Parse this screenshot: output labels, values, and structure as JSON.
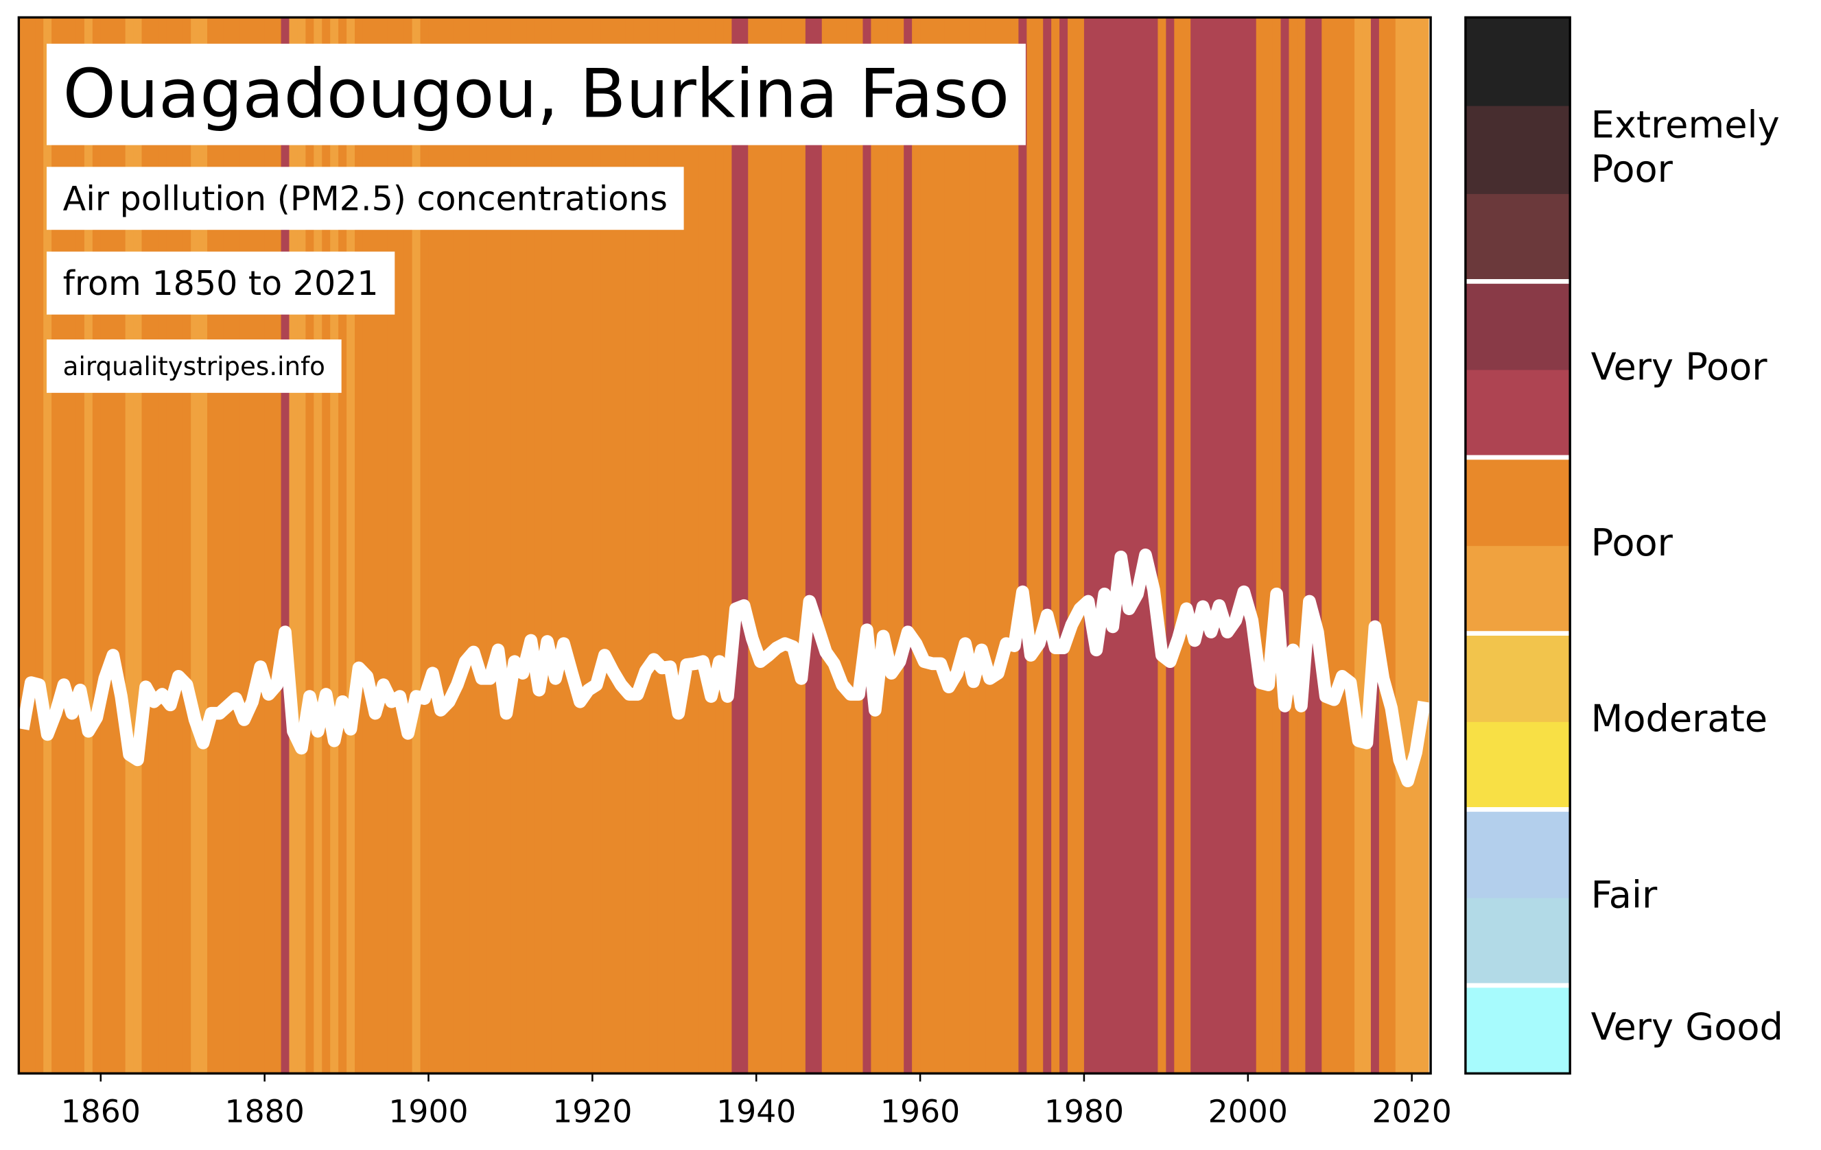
{
  "chart_data": {
    "type": "stripes",
    "title": "Ouagadougou, Burkina Faso",
    "subtitle": "Air pollution (PM2.5) concentrations",
    "period": "from 1850 to 2021",
    "source": "airqualitystripes.info",
    "x": [
      1850,
      1851,
      1852,
      1853,
      1854,
      1855,
      1856,
      1857,
      1858,
      1859,
      1860,
      1861,
      1862,
      1863,
      1864,
      1865,
      1866,
      1867,
      1868,
      1869,
      1870,
      1871,
      1872,
      1873,
      1874,
      1875,
      1876,
      1877,
      1878,
      1879,
      1880,
      1881,
      1882,
      1883,
      1884,
      1885,
      1886,
      1887,
      1888,
      1889,
      1890,
      1891,
      1892,
      1893,
      1894,
      1895,
      1896,
      1897,
      1898,
      1899,
      1900,
      1901,
      1902,
      1903,
      1904,
      1905,
      1906,
      1907,
      1908,
      1909,
      1910,
      1911,
      1912,
      1913,
      1914,
      1915,
      1916,
      1917,
      1918,
      1919,
      1920,
      1921,
      1922,
      1923,
      1924,
      1925,
      1926,
      1927,
      1928,
      1929,
      1930,
      1931,
      1932,
      1933,
      1934,
      1935,
      1936,
      1937,
      1938,
      1939,
      1940,
      1941,
      1942,
      1943,
      1944,
      1945,
      1946,
      1947,
      1948,
      1949,
      1950,
      1951,
      1952,
      1953,
      1954,
      1955,
      1956,
      1957,
      1958,
      1959,
      1960,
      1961,
      1962,
      1963,
      1964,
      1965,
      1966,
      1967,
      1968,
      1969,
      1970,
      1971,
      1972,
      1973,
      1974,
      1975,
      1976,
      1977,
      1978,
      1979,
      1980,
      1981,
      1982,
      1983,
      1984,
      1985,
      1986,
      1987,
      1988,
      1989,
      1990,
      1991,
      1992,
      1993,
      1994,
      1995,
      1996,
      1997,
      1998,
      1999,
      2000,
      2001,
      2002,
      2003,
      2004,
      2005,
      2006,
      2007,
      2008,
      2009,
      2010,
      2011,
      2012,
      2013,
      2014,
      2015,
      2016,
      2017,
      2018,
      2019,
      2020,
      2021
    ],
    "values": [
      32.6,
      37.0,
      36.8,
      32.1,
      34.1,
      36.8,
      34.1,
      36.3,
      32.4,
      33.7,
      37.4,
      39.6,
      35.7,
      30.2,
      29.7,
      36.6,
      35.2,
      35.9,
      34.9,
      37.6,
      36.8,
      33.5,
      31.3,
      34.1,
      34.1,
      34.8,
      35.5,
      33.5,
      35.2,
      38.5,
      35.9,
      36.8,
      41.8,
      32.4,
      30.8,
      35.7,
      32.4,
      35.9,
      31.5,
      35.2,
      32.6,
      38.4,
      37.6,
      34.1,
      36.8,
      35.2,
      35.7,
      32.2,
      35.7,
      35.5,
      37.9,
      34.4,
      35.2,
      36.8,
      39.0,
      39.9,
      37.4,
      37.4,
      40.1,
      34.1,
      39.0,
      37.9,
      41.0,
      36.3,
      40.9,
      37.4,
      40.7,
      37.9,
      35.2,
      36.3,
      36.8,
      39.6,
      38.1,
      36.8,
      35.9,
      35.9,
      38.1,
      39.2,
      38.4,
      38.5,
      34.1,
      38.7,
      38.8,
      39.0,
      35.7,
      39.0,
      35.7,
      44.0,
      44.3,
      41.2,
      39.0,
      39.6,
      40.3,
      40.7,
      40.4,
      37.4,
      44.7,
      42.3,
      39.9,
      38.8,
      36.8,
      35.9,
      35.9,
      42.0,
      34.4,
      41.4,
      37.9,
      39.0,
      41.8,
      40.7,
      39.0,
      38.8,
      38.8,
      36.6,
      37.9,
      40.7,
      37.1,
      40.1,
      37.4,
      37.9,
      40.7,
      40.5,
      45.6,
      39.6,
      40.7,
      43.4,
      40.3,
      40.3,
      42.5,
      44.0,
      44.7,
      40.1,
      45.4,
      42.3,
      48.9,
      44.0,
      45.4,
      49.1,
      45.8,
      39.6,
      39.0,
      41.2,
      44.0,
      41.0,
      44.2,
      41.8,
      44.3,
      41.8,
      42.9,
      45.6,
      42.9,
      37.0,
      36.8,
      45.4,
      34.8,
      40.1,
      34.8,
      44.7,
      41.8,
      35.7,
      35.4,
      37.6,
      37.0,
      31.5,
      31.3,
      42.3,
      37.4,
      34.6,
      29.7,
      27.7,
      30.4,
      35.2
    ],
    "stripe_colors": [
      "#e8892a",
      "#e8892a",
      "#e8892a",
      "#f0a23f",
      "#e8892a",
      "#e8892a",
      "#e8892a",
      "#e8892a",
      "#f0a23f",
      "#e8892a",
      "#e8892a",
      "#e8892a",
      "#e8892a",
      "#f0a23f",
      "#f0a23f",
      "#e8892a",
      "#e8892a",
      "#e8892a",
      "#e8892a",
      "#e8892a",
      "#e8892a",
      "#f0a23f",
      "#f0a23f",
      "#e8892a",
      "#e8892a",
      "#e8892a",
      "#e8892a",
      "#e8892a",
      "#e8892a",
      "#e8892a",
      "#e8892a",
      "#e8892a",
      "#ae4452",
      "#f0a23f",
      "#f0a23f",
      "#e8892a",
      "#f0a23f",
      "#e8892a",
      "#f0a23f",
      "#e8892a",
      "#f0a23f",
      "#e8892a",
      "#e8892a",
      "#e8892a",
      "#e8892a",
      "#e8892a",
      "#e8892a",
      "#e8892a",
      "#f0a23f",
      "#e8892a",
      "#e8892a",
      "#e8892a",
      "#e8892a",
      "#e8892a",
      "#e8892a",
      "#e8892a",
      "#e8892a",
      "#e8892a",
      "#e8892a",
      "#e8892a",
      "#e8892a",
      "#e8892a",
      "#e8892a",
      "#e8892a",
      "#e8892a",
      "#e8892a",
      "#e8892a",
      "#e8892a",
      "#e8892a",
      "#e8892a",
      "#e8892a",
      "#e8892a",
      "#e8892a",
      "#e8892a",
      "#e8892a",
      "#e8892a",
      "#e8892a",
      "#e8892a",
      "#e8892a",
      "#e8892a",
      "#e8892a",
      "#e8892a",
      "#e8892a",
      "#e8892a",
      "#e8892a",
      "#e8892a",
      "#e8892a",
      "#ae4452",
      "#ae4452",
      "#e8892a",
      "#e8892a",
      "#e8892a",
      "#e8892a",
      "#e8892a",
      "#e8892a",
      "#e8892a",
      "#ae4452",
      "#ae4452",
      "#e8892a",
      "#e8892a",
      "#e8892a",
      "#e8892a",
      "#e8892a",
      "#ae4452",
      "#e8892a",
      "#e8892a",
      "#e8892a",
      "#e8892a",
      "#ae4452",
      "#e8892a",
      "#e8892a",
      "#e8892a",
      "#e8892a",
      "#e8892a",
      "#e8892a",
      "#e8892a",
      "#e8892a",
      "#e8892a",
      "#e8892a",
      "#e8892a",
      "#e8892a",
      "#e8892a",
      "#ae4452",
      "#e8892a",
      "#e8892a",
      "#ae4452",
      "#e8892a",
      "#ae4452",
      "#e8892a",
      "#e8892a",
      "#ae4452",
      "#ae4452",
      "#ae4452",
      "#ae4452",
      "#ae4452",
      "#ae4452",
      "#ae4452",
      "#ae4452",
      "#ae4452",
      "#e8892a",
      "#ae4452",
      "#e8892a",
      "#e8892a",
      "#ae4452",
      "#ae4452",
      "#ae4452",
      "#ae4452",
      "#ae4452",
      "#ae4452",
      "#ae4452",
      "#ae4452",
      "#e8892a",
      "#e8892a",
      "#e8892a",
      "#ae4452",
      "#e8892a",
      "#e8892a",
      "#ae4452",
      "#ae4452",
      "#e8892a",
      "#e8892a",
      "#e8892a",
      "#e8892a",
      "#f0a23f",
      "#f0a23f",
      "#ae4452",
      "#e8892a",
      "#e8892a",
      "#f0a23f",
      "#f0a23f",
      "#f0a23f",
      "#f0a23f"
    ],
    "line_color": "#ffffff",
    "xlim": [
      1850,
      2022.3
    ],
    "ylim": [
      0,
      100
    ],
    "xticks": [
      1860,
      1880,
      1900,
      1920,
      1940,
      1960,
      1980,
      2000,
      2020
    ],
    "legend": [
      {
        "label": "Very Good",
        "colors": [
          "#a7fbfd"
        ]
      },
      {
        "label": "Fair",
        "colors": [
          "#b2dae7",
          "#b3cfec"
        ]
      },
      {
        "label": "Moderate",
        "colors": [
          "#f8e045",
          "#f2c44c"
        ]
      },
      {
        "label": "Poor",
        "colors": [
          "#f0a23f",
          "#e8892a"
        ]
      },
      {
        "label": "Very Poor",
        "colors": [
          "#ae4452",
          "#893a47"
        ]
      },
      {
        "label": "Extremely Poor",
        "colors": [
          "#6b393b",
          "#472d2f",
          "#222222"
        ]
      }
    ]
  }
}
